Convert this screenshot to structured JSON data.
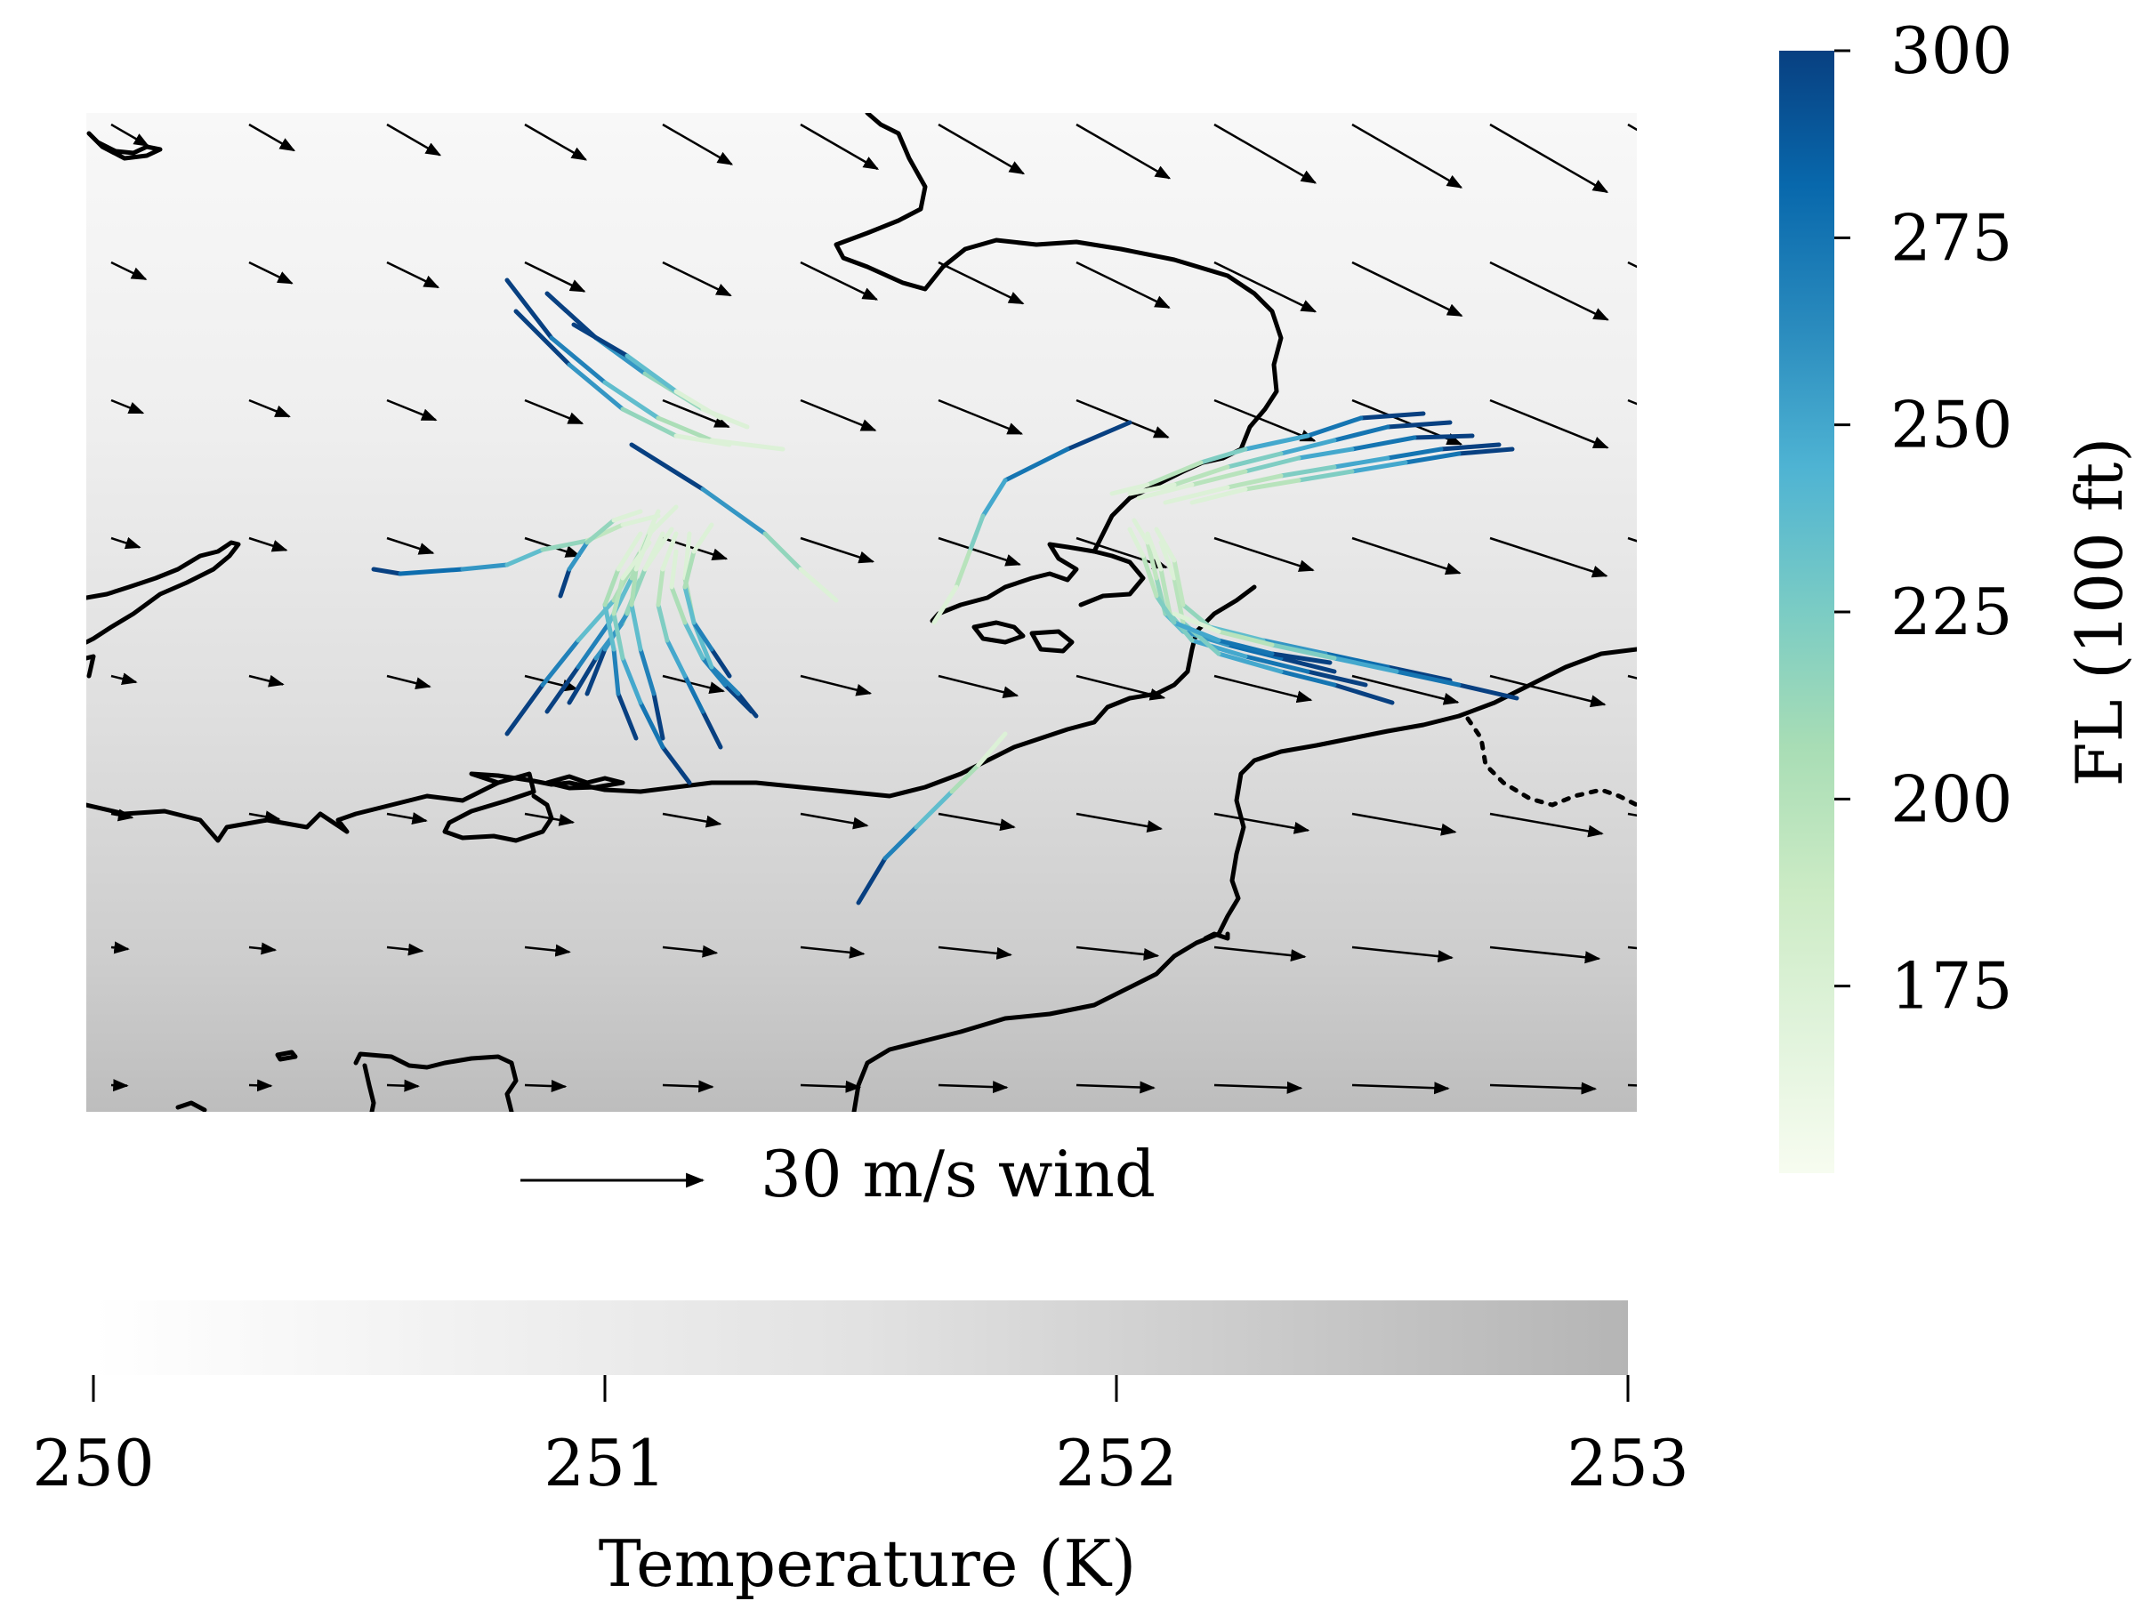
{
  "map": {
    "temperature_field": {
      "colors": [
        "#f8f8f8",
        "#f1f1f1",
        "#e6e6e6",
        "#d9d9d9",
        "#c9c9c9",
        "#b2b2b2"
      ]
    },
    "coastline_color": "#000000",
    "wind_arrow_color": "#000000"
  },
  "wind_key": {
    "label": "30 m/s wind",
    "speed": 30
  },
  "flight_level_colorbar": {
    "label": "FL (100 ft)",
    "ticks": [
      "300",
      "275",
      "250",
      "225",
      "200",
      "175"
    ],
    "min": 150,
    "max": 300,
    "colors": [
      "#f7fcf0",
      "#e0f3db",
      "#ccebc5",
      "#a8ddb5",
      "#7bccc4",
      "#4eb3d3",
      "#2b8cbe",
      "#0868ac",
      "#084081"
    ]
  },
  "temperature_colorbar": {
    "label": "Temperature (K)",
    "ticks": [
      "250",
      "251",
      "252",
      "253"
    ],
    "min": 250,
    "max": 253
  }
}
